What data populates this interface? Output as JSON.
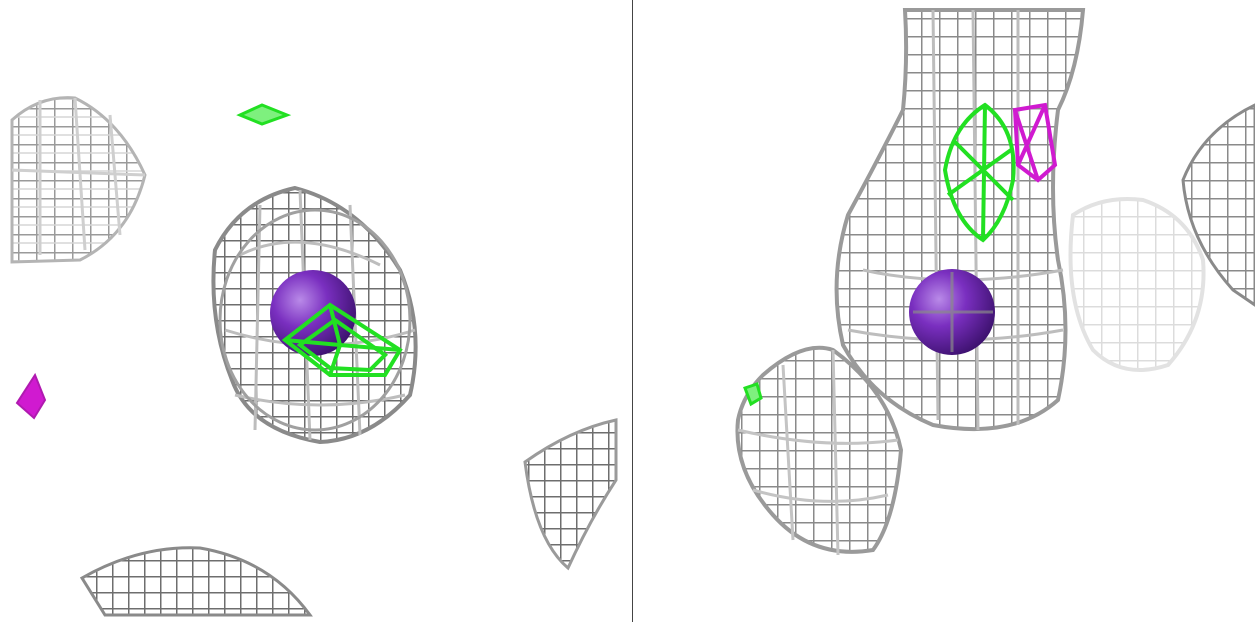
{
  "viewer": {
    "panels": [
      "left-view",
      "right-view"
    ],
    "colors": {
      "background": "#ffffff",
      "mesh_grey": "#9a9a9a",
      "mesh_dark": "#5e5e5e",
      "mesh_faded": "#dcdcdc",
      "difference_positive": "#22e022",
      "difference_negative": "#d01ad0",
      "atom": "#7a2fc0"
    },
    "objects": {
      "left": [
        "grey-density-mesh",
        "green-difference-density",
        "magenta-difference-density",
        "purple-ion-sphere"
      ],
      "right": [
        "grey-density-mesh",
        "green-difference-density",
        "magenta-difference-density",
        "purple-ion-sphere"
      ]
    }
  }
}
